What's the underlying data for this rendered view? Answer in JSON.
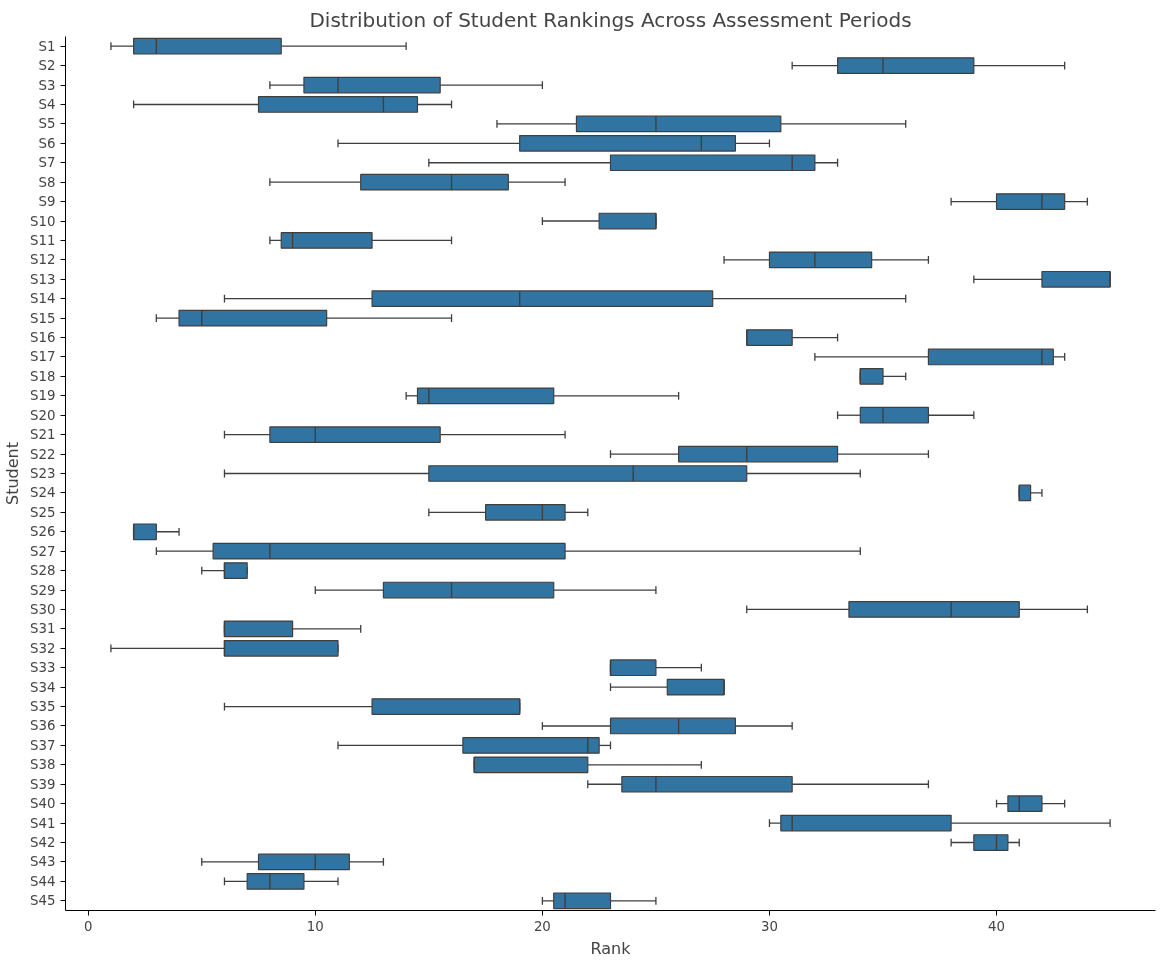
{
  "chart_data": {
    "type": "box",
    "orientation": "horizontal",
    "title": "Distribution of Student Rankings Across Assessment Periods",
    "xlabel": "Rank",
    "ylabel": "Student",
    "color": "#3274a1",
    "xlim": [
      -1,
      47
    ],
    "xticks": [
      0,
      10,
      20,
      30,
      40
    ],
    "grid": false,
    "categories": [
      "S1",
      "S2",
      "S3",
      "S4",
      "S5",
      "S6",
      "S7",
      "S8",
      "S9",
      "S10",
      "S11",
      "S12",
      "S13",
      "S14",
      "S15",
      "S16",
      "S17",
      "S18",
      "S19",
      "S20",
      "S21",
      "S22",
      "S23",
      "S24",
      "S25",
      "S26",
      "S27",
      "S28",
      "S29",
      "S30",
      "S31",
      "S32",
      "S33",
      "S34",
      "S35",
      "S36",
      "S37",
      "S38",
      "S39",
      "S40",
      "S41",
      "S42",
      "S43",
      "S44",
      "S45"
    ],
    "boxes": [
      {
        "low": 1,
        "q1": 2,
        "median": 3,
        "q3": 8.5,
        "high": 14
      },
      {
        "low": 31,
        "q1": 33,
        "median": 35,
        "q3": 39,
        "high": 43
      },
      {
        "low": 8,
        "q1": 9.5,
        "median": 11,
        "q3": 15.5,
        "high": 20
      },
      {
        "low": 2,
        "q1": 7.5,
        "median": 13,
        "q3": 14.5,
        "high": 16
      },
      {
        "low": 18,
        "q1": 21.5,
        "median": 25,
        "q3": 30.5,
        "high": 36
      },
      {
        "low": 11,
        "q1": 19,
        "median": 27,
        "q3": 28.5,
        "high": 30
      },
      {
        "low": 15,
        "q1": 23,
        "median": 31,
        "q3": 32,
        "high": 33
      },
      {
        "low": 8,
        "q1": 12,
        "median": 16,
        "q3": 18.5,
        "high": 21
      },
      {
        "low": 38,
        "q1": 40,
        "median": 42,
        "q3": 43,
        "high": 44
      },
      {
        "low": 20,
        "q1": 22.5,
        "median": 25,
        "q3": 25,
        "high": 25
      },
      {
        "low": 8,
        "q1": 8.5,
        "median": 9,
        "q3": 12.5,
        "high": 16
      },
      {
        "low": 28,
        "q1": 30,
        "median": 32,
        "q3": 34.5,
        "high": 37
      },
      {
        "low": 39,
        "q1": 42,
        "median": 45,
        "q3": 45,
        "high": 45
      },
      {
        "low": 6,
        "q1": 12.5,
        "median": 19,
        "q3": 27.5,
        "high": 36
      },
      {
        "low": 3,
        "q1": 4,
        "median": 5,
        "q3": 10.5,
        "high": 16
      },
      {
        "low": 29,
        "q1": 29,
        "median": 29,
        "q3": 31,
        "high": 33
      },
      {
        "low": 32,
        "q1": 37,
        "median": 42,
        "q3": 42.5,
        "high": 43
      },
      {
        "low": 34,
        "q1": 34,
        "median": 34,
        "q3": 35,
        "high": 36
      },
      {
        "low": 14,
        "q1": 14.5,
        "median": 15,
        "q3": 20.5,
        "high": 26
      },
      {
        "low": 33,
        "q1": 34,
        "median": 35,
        "q3": 37,
        "high": 39
      },
      {
        "low": 6,
        "q1": 8,
        "median": 10,
        "q3": 15.5,
        "high": 21
      },
      {
        "low": 23,
        "q1": 26,
        "median": 29,
        "q3": 33,
        "high": 37
      },
      {
        "low": 6,
        "q1": 15,
        "median": 24,
        "q3": 29,
        "high": 34
      },
      {
        "low": 41,
        "q1": 41,
        "median": 41,
        "q3": 41.5,
        "high": 42
      },
      {
        "low": 15,
        "q1": 17.5,
        "median": 20,
        "q3": 21,
        "high": 22
      },
      {
        "low": 2,
        "q1": 2,
        "median": 2,
        "q3": 3,
        "high": 4
      },
      {
        "low": 3,
        "q1": 5.5,
        "median": 8,
        "q3": 21,
        "high": 34
      },
      {
        "low": 5,
        "q1": 6,
        "median": 6,
        "q3": 7,
        "high": 7
      },
      {
        "low": 10,
        "q1": 13,
        "median": 16,
        "q3": 20.5,
        "high": 25
      },
      {
        "low": 29,
        "q1": 33.5,
        "median": 38,
        "q3": 41,
        "high": 44
      },
      {
        "low": 6,
        "q1": 6,
        "median": 6,
        "q3": 9,
        "high": 12
      },
      {
        "low": 1,
        "q1": 6,
        "median": 6,
        "q3": 11,
        "high": 11
      },
      {
        "low": 23,
        "q1": 23,
        "median": 23,
        "q3": 25,
        "high": 27
      },
      {
        "low": 23,
        "q1": 25.5,
        "median": 28,
        "q3": 28,
        "high": 28
      },
      {
        "low": 6,
        "q1": 12.5,
        "median": 19,
        "q3": 19,
        "high": 19
      },
      {
        "low": 20,
        "q1": 23,
        "median": 26,
        "q3": 28.5,
        "high": 31
      },
      {
        "low": 11,
        "q1": 16.5,
        "median": 22,
        "q3": 22.5,
        "high": 23
      },
      {
        "low": 17,
        "q1": 17,
        "median": 17,
        "q3": 22,
        "high": 27
      },
      {
        "low": 22,
        "q1": 23.5,
        "median": 25,
        "q3": 31,
        "high": 37
      },
      {
        "low": 40,
        "q1": 40.5,
        "median": 41,
        "q3": 42,
        "high": 43
      },
      {
        "low": 30,
        "q1": 30.5,
        "median": 31,
        "q3": 38,
        "high": 45
      },
      {
        "low": 38,
        "q1": 39,
        "median": 40,
        "q3": 40.5,
        "high": 41
      },
      {
        "low": 5,
        "q1": 7.5,
        "median": 10,
        "q3": 11.5,
        "high": 13
      },
      {
        "low": 6,
        "q1": 7,
        "median": 8,
        "q3": 9.5,
        "high": 11
      },
      {
        "low": 20,
        "q1": 20.5,
        "median": 21,
        "q3": 23,
        "high": 25
      }
    ]
  }
}
